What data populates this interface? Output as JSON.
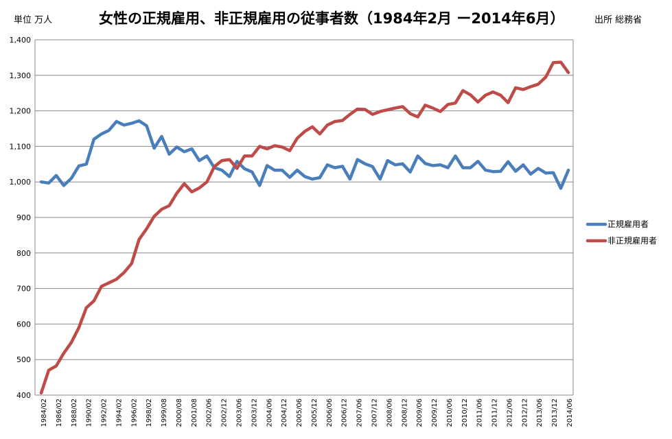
{
  "header": {
    "unit": "単位 万人",
    "title": "女性の正規雇用、非正規雇用の従事者数（1984年2月 ー2014年6月）",
    "source": "出所 総務省"
  },
  "chart_data": {
    "type": "line",
    "ylim": [
      400,
      1400
    ],
    "ytick_labels": [
      "400",
      "500",
      "600",
      "700",
      "800",
      "900",
      "1,000",
      "1,100",
      "1,200",
      "1,300",
      "1,400"
    ],
    "ytick_values": [
      400,
      500,
      600,
      700,
      800,
      900,
      1000,
      1100,
      1200,
      1300,
      1400
    ],
    "grid": "horizontal",
    "legend_position": "right",
    "x": [
      "1984/02",
      "1985/02",
      "1986/02",
      "1987/02",
      "1988/02",
      "1989/02",
      "1990/02",
      "1991/02",
      "1992/02",
      "1993/02",
      "1994/02",
      "1995/02",
      "1996/02",
      "1997/02",
      "1998/02",
      "1999/02",
      "1999/08",
      "2000/02",
      "2000/08",
      "2001/02",
      "2001/08",
      "2002/02",
      "2002/06",
      "2002/09",
      "2002/12",
      "2003/03",
      "2003/06",
      "2003/09",
      "2003/12",
      "2004/03",
      "2004/06",
      "2004/09",
      "2004/12",
      "2005/03",
      "2005/06",
      "2005/09",
      "2005/12",
      "2006/03",
      "2006/06",
      "2006/09",
      "2006/12",
      "2007/03",
      "2007/06",
      "2007/09",
      "2007/12",
      "2008/03",
      "2008/06",
      "2008/09",
      "2008/12",
      "2009/03",
      "2009/06",
      "2009/09",
      "2009/12",
      "2010/03",
      "2010/06",
      "2010/09",
      "2010/12",
      "2011/03",
      "2011/06",
      "2011/09",
      "2011/12",
      "2012/03",
      "2012/06",
      "2012/09",
      "2012/12",
      "2013/03",
      "2013/06",
      "2013/09",
      "2013/12",
      "2014/03",
      "2014/06"
    ],
    "xtick_labels": [
      "1984/02",
      "1986/02",
      "1988/02",
      "1990/02",
      "1992/02",
      "1994/02",
      "1996/02",
      "1998/02",
      "1999/08",
      "2000/08",
      "2001/08",
      "2002/06",
      "2002/12",
      "2003/06",
      "2003/12",
      "2004/06",
      "2004/12",
      "2005/06",
      "2005/12",
      "2006/06",
      "2006/12",
      "2007/06",
      "2007/12",
      "2008/06",
      "2008/12",
      "2009/06",
      "2009/12",
      "2010/06",
      "2010/12",
      "2011/06",
      "2011/12",
      "2012/06",
      "2012/12",
      "2013/06",
      "2013/12",
      "2014/06"
    ],
    "series": [
      {
        "name": "正規雇用者",
        "color": "#4a7ebb",
        "values": [
          1000,
          997,
          1018,
          990,
          1010,
          1045,
          1050,
          1120,
          1135,
          1145,
          1170,
          1160,
          1165,
          1172,
          1158,
          1095,
          1128,
          1078,
          1098,
          1085,
          1093,
          1060,
          1073,
          1040,
          1033,
          1015,
          1058,
          1037,
          1028,
          990,
          1046,
          1033,
          1033,
          1013,
          1033,
          1015,
          1008,
          1012,
          1048,
          1040,
          1044,
          1008,
          1063,
          1051,
          1043,
          1008,
          1060,
          1048,
          1051,
          1028,
          1073,
          1052,
          1046,
          1048,
          1040,
          1073,
          1040,
          1040,
          1058,
          1033,
          1029,
          1030,
          1057,
          1030,
          1048,
          1022,
          1038,
          1025,
          1026,
          982,
          1033
        ]
      },
      {
        "name": "非正規雇用者",
        "color": "#be4b48",
        "values": [
          406,
          470,
          482,
          518,
          548,
          590,
          646,
          665,
          706,
          716,
          726,
          745,
          770,
          838,
          868,
          903,
          923,
          933,
          968,
          995,
          972,
          983,
          1000,
          1043,
          1060,
          1063,
          1038,
          1073,
          1073,
          1100,
          1093,
          1102,
          1098,
          1088,
          1123,
          1142,
          1155,
          1135,
          1160,
          1170,
          1173,
          1190,
          1205,
          1204,
          1190,
          1198,
          1203,
          1208,
          1212,
          1192,
          1183,
          1216,
          1208,
          1198,
          1218,
          1222,
          1257,
          1245,
          1225,
          1244,
          1253,
          1244,
          1223,
          1265,
          1260,
          1268,
          1275,
          1295,
          1336,
          1337,
          1308
        ]
      }
    ]
  }
}
